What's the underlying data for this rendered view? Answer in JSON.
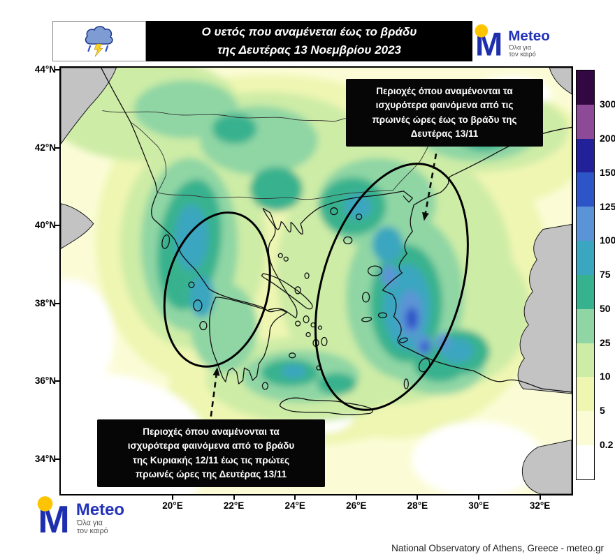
{
  "header": {
    "title_lines": [
      "Ο υετός που αναμένεται έως το βράδυ",
      "της Δευτέρας 13 Νοεμβρίου 2023"
    ],
    "weather_icon": "storm-cloud-rain-icon"
  },
  "branding": {
    "logo_letter": "M",
    "name": "Meteo",
    "tagline_lines": [
      "Όλα για",
      "τον καιρό"
    ],
    "brand_blue": "#1d2fae",
    "brand_yellow": "#ffc400"
  },
  "axes": {
    "lat_labels": [
      "44°N",
      "42°N",
      "40°N",
      "38°N",
      "36°N",
      "34°N"
    ],
    "lon_labels": [
      "20°E",
      "22°E",
      "24°E",
      "26°E",
      "28°E",
      "30°E",
      "32°E"
    ]
  },
  "callouts": {
    "northeast": {
      "lines": [
        "Περιοχές όπου αναμένονται τα",
        "ισχυρότερα φαινόμενα από τις",
        "πρωινές ώρες έως το βράδυ της",
        "Δευτέρας 13/11"
      ]
    },
    "southwest": {
      "lines": [
        "Περιοχές όπου αναμένονται τα",
        "ισχυρότερα φαινόμενα από το βράδυ",
        "της Κυριακής 12/11 έως τις πρώτες",
        "πρωινές ώρες της Δευτέρας 13/11"
      ]
    }
  },
  "colorbar": {
    "tick_labels": [
      "300",
      "200",
      "150",
      "125",
      "100",
      "75",
      "50",
      "25",
      "10",
      "5",
      "0.2"
    ],
    "segment_colors_top_to_bottom": [
      "#330742",
      "#8c4a97",
      "#232199",
      "#2e55c8",
      "#5b94d6",
      "#3ba6bf",
      "#37b28e",
      "#8fd6a4",
      "#cdeca6",
      "#eef6b2",
      "#fbfcd6",
      "#ffffff"
    ]
  },
  "footer": {
    "credit": "National Observatory of Athens, Greece - meteo.gr"
  }
}
